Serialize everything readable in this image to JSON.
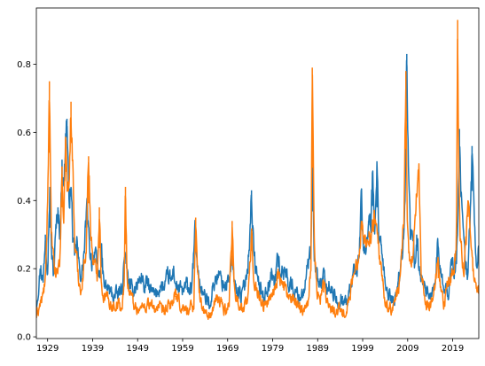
{
  "chart_data": {
    "type": "line",
    "title": "",
    "xlabel": "",
    "ylabel": "",
    "xlim": [
      1926.5,
      2024.8
    ],
    "ylim": [
      -0.005,
      0.965
    ],
    "grid": false,
    "legend": "none",
    "x_ticks": [
      1929,
      1939,
      1949,
      1959,
      1969,
      1979,
      1989,
      1999,
      2009,
      2019
    ],
    "x_tick_labels": [
      "1929",
      "1939",
      "1949",
      "1959",
      "1969",
      "1979",
      "1989",
      "1999",
      "2009",
      "2019"
    ],
    "y_ticks": [
      0.0,
      0.2,
      0.4,
      0.6,
      0.8
    ],
    "y_tick_labels": [
      "0.0",
      "0.2",
      "0.4",
      "0.6",
      "0.8"
    ],
    "series": [
      {
        "color": "#1f77b4",
        "x": [
          1926.5,
          1927.5,
          1928.0,
          1928.5,
          1929.0,
          1929.5,
          1929.9,
          1930.3,
          1930.8,
          1931.3,
          1931.8,
          1932.2,
          1932.6,
          1933.0,
          1933.3,
          1933.7,
          1934.2,
          1934.6,
          1935.0,
          1935.5,
          1936.0,
          1936.6,
          1937.2,
          1937.7,
          1938.2,
          1938.8,
          1939.4,
          1940.0,
          1940.5,
          1941.0,
          1941.5,
          1942.5,
          1943.5,
          1944.5,
          1945.5,
          1946.2,
          1946.6,
          1947.0,
          1947.8,
          1948.5,
          1949.2,
          1950.0,
          1950.5,
          1951.2,
          1952.0,
          1953.0,
          1954.0,
          1955.0,
          1955.8,
          1956.5,
          1957.0,
          1957.5,
          1958.2,
          1959.0,
          1960.0,
          1961.0,
          1961.8,
          1962.2,
          1962.6,
          1963.2,
          1964.0,
          1965.0,
          1966.0,
          1966.8,
          1967.5,
          1968.5,
          1969.5,
          1970.2,
          1970.6,
          1971.2,
          1972.0,
          1972.8,
          1973.5,
          1974.0,
          1974.3,
          1974.7,
          1975.2,
          1976.0,
          1977.0,
          1978.0,
          1978.8,
          1979.5,
          1980.2,
          1981.0,
          1982.0,
          1982.5,
          1983.2,
          1984.0,
          1985.0,
          1986.0,
          1986.8,
          1987.5,
          1987.8,
          1988.2,
          1988.8,
          1989.5,
          1990.2,
          1990.8,
          1991.5,
          1992.5,
          1993.5,
          1994.5,
          1995.5,
          1996.3,
          1997.0,
          1997.8,
          1998.3,
          1998.7,
          1999.2,
          1999.8,
          2000.3,
          2000.8,
          2001.2,
          2001.7,
          2002.2,
          2002.6,
          2003.0,
          2003.5,
          2004.0,
          2005.0,
          2006.0,
          2006.8,
          2007.5,
          2008.0,
          2008.4,
          2008.8,
          2009.2,
          2009.6,
          2010.0,
          2010.5,
          2011.0,
          2011.5,
          2012.0,
          2013.0,
          2014.0,
          2015.0,
          2015.6,
          2016.2,
          2017.0,
          2018.0,
          2018.6,
          2019.2,
          2019.8,
          2020.2,
          2020.5,
          2020.9,
          2021.3,
          2021.8,
          2022.3,
          2022.8,
          2023.3,
          2023.8,
          2024.3,
          2024.8
        ],
        "y": [
          0.1,
          0.21,
          0.16,
          0.3,
          0.22,
          0.44,
          0.24,
          0.18,
          0.3,
          0.38,
          0.3,
          0.52,
          0.42,
          0.6,
          0.64,
          0.4,
          0.44,
          0.3,
          0.22,
          0.28,
          0.2,
          0.18,
          0.26,
          0.38,
          0.28,
          0.22,
          0.25,
          0.2,
          0.18,
          0.24,
          0.15,
          0.14,
          0.12,
          0.12,
          0.14,
          0.25,
          0.19,
          0.16,
          0.13,
          0.15,
          0.16,
          0.18,
          0.14,
          0.16,
          0.13,
          0.12,
          0.15,
          0.14,
          0.18,
          0.16,
          0.2,
          0.15,
          0.14,
          0.13,
          0.15,
          0.13,
          0.32,
          0.22,
          0.17,
          0.14,
          0.11,
          0.1,
          0.16,
          0.18,
          0.17,
          0.15,
          0.18,
          0.22,
          0.15,
          0.14,
          0.12,
          0.15,
          0.22,
          0.32,
          0.43,
          0.28,
          0.2,
          0.15,
          0.12,
          0.15,
          0.18,
          0.16,
          0.24,
          0.18,
          0.2,
          0.16,
          0.15,
          0.13,
          0.12,
          0.14,
          0.2,
          0.24,
          0.56,
          0.22,
          0.18,
          0.15,
          0.18,
          0.14,
          0.15,
          0.12,
          0.1,
          0.12,
          0.1,
          0.14,
          0.2,
          0.18,
          0.28,
          0.4,
          0.24,
          0.26,
          0.34,
          0.32,
          0.48,
          0.26,
          0.5,
          0.3,
          0.26,
          0.2,
          0.15,
          0.12,
          0.1,
          0.16,
          0.2,
          0.3,
          0.4,
          0.83,
          0.5,
          0.28,
          0.28,
          0.22,
          0.3,
          0.2,
          0.18,
          0.15,
          0.11,
          0.16,
          0.26,
          0.2,
          0.14,
          0.12,
          0.22,
          0.2,
          0.2,
          0.38,
          0.61,
          0.42,
          0.3,
          0.22,
          0.18,
          0.32,
          0.56,
          0.34,
          0.2,
          0.26
        ],
        "noise": 0.022
      },
      {
        "color": "#ff7f0e",
        "x": [
          1926.5,
          1927.2,
          1928.0,
          1928.6,
          1929.0,
          1929.4,
          1929.8,
          1930.3,
          1930.8,
          1931.3,
          1931.8,
          1932.2,
          1932.6,
          1933.0,
          1933.4,
          1933.8,
          1934.2,
          1934.6,
          1935.0,
          1935.5,
          1936.0,
          1936.6,
          1937.2,
          1937.6,
          1938.1,
          1938.6,
          1939.2,
          1940.0,
          1940.5,
          1941.0,
          1941.5,
          1942.5,
          1943.5,
          1944.5,
          1945.5,
          1946.0,
          1946.3,
          1946.7,
          1947.5,
          1948.5,
          1949.5,
          1950.5,
          1951.5,
          1952.5,
          1953.5,
          1954.5,
          1955.5,
          1956.5,
          1957.5,
          1958.5,
          1959.5,
          1960.5,
          1961.5,
          1961.9,
          1962.3,
          1963.0,
          1964.0,
          1965.0,
          1966.0,
          1966.8,
          1967.5,
          1968.5,
          1969.3,
          1970.0,
          1970.6,
          1971.5,
          1972.5,
          1973.5,
          1974.0,
          1974.4,
          1974.8,
          1975.5,
          1976.5,
          1977.5,
          1978.5,
          1979.5,
          1980.2,
          1981.0,
          1982.0,
          1983.0,
          1984.0,
          1985.0,
          1986.0,
          1987.0,
          1987.5,
          1987.8,
          1988.2,
          1988.8,
          1989.5,
          1990.3,
          1991.0,
          1992.0,
          1993.0,
          1994.0,
          1995.0,
          1996.0,
          1997.0,
          1997.8,
          1998.3,
          1998.7,
          1999.2,
          1999.8,
          2000.4,
          2001.0,
          2001.5,
          2002.0,
          2002.5,
          2003.0,
          2003.5,
          2004.0,
          2005.0,
          2006.0,
          2007.0,
          2007.6,
          2008.2,
          2008.6,
          2008.9,
          2009.3,
          2009.8,
          2010.4,
          2011.0,
          2011.5,
          2012.0,
          2012.6,
          2013.2,
          2014.0,
          2015.0,
          2015.8,
          2016.3,
          2017.0,
          2018.0,
          2018.6,
          2019.2,
          2019.8,
          2020.1,
          2020.3,
          2020.6,
          2021.0,
          2021.5,
          2022.0,
          2022.4,
          2022.8,
          2023.3,
          2023.8,
          2024.3,
          2024.8
        ],
        "y": [
          0.06,
          0.09,
          0.12,
          0.18,
          0.4,
          0.75,
          0.3,
          0.22,
          0.18,
          0.2,
          0.24,
          0.5,
          0.3,
          0.58,
          0.42,
          0.44,
          0.69,
          0.5,
          0.28,
          0.22,
          0.16,
          0.14,
          0.22,
          0.28,
          0.53,
          0.3,
          0.22,
          0.18,
          0.38,
          0.15,
          0.12,
          0.11,
          0.09,
          0.1,
          0.08,
          0.14,
          0.44,
          0.16,
          0.12,
          0.09,
          0.08,
          0.09,
          0.1,
          0.08,
          0.09,
          0.07,
          0.08,
          0.1,
          0.12,
          0.09,
          0.08,
          0.08,
          0.1,
          0.35,
          0.18,
          0.1,
          0.07,
          0.06,
          0.09,
          0.11,
          0.1,
          0.08,
          0.09,
          0.34,
          0.12,
          0.1,
          0.08,
          0.11,
          0.22,
          0.3,
          0.18,
          0.14,
          0.1,
          0.09,
          0.12,
          0.14,
          0.2,
          0.15,
          0.14,
          0.1,
          0.11,
          0.09,
          0.08,
          0.12,
          0.2,
          0.79,
          0.3,
          0.14,
          0.1,
          0.16,
          0.11,
          0.09,
          0.08,
          0.08,
          0.07,
          0.11,
          0.18,
          0.22,
          0.28,
          0.34,
          0.3,
          0.26,
          0.31,
          0.28,
          0.36,
          0.3,
          0.26,
          0.2,
          0.15,
          0.1,
          0.08,
          0.09,
          0.14,
          0.24,
          0.34,
          0.78,
          0.4,
          0.24,
          0.2,
          0.28,
          0.44,
          0.49,
          0.2,
          0.14,
          0.1,
          0.09,
          0.14,
          0.22,
          0.13,
          0.09,
          0.16,
          0.18,
          0.2,
          0.24,
          0.93,
          0.62,
          0.3,
          0.24,
          0.2,
          0.28,
          0.4,
          0.32,
          0.24,
          0.16,
          0.14,
          0.12
        ],
        "noise": 0.02
      }
    ]
  }
}
